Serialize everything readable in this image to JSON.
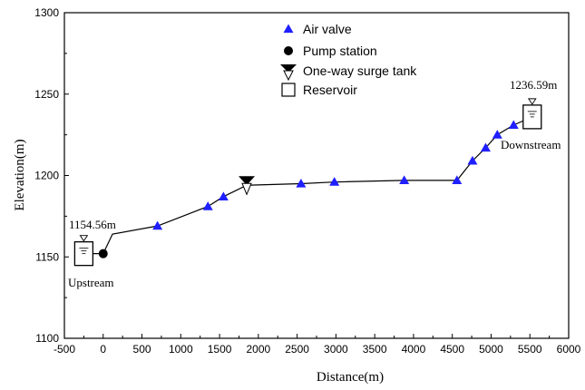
{
  "chart_data": {
    "type": "line",
    "xlabel": "Distance(m)",
    "ylabel": "Elevation(m)",
    "xlim": [
      -500,
      6000
    ],
    "ylim": [
      1100,
      1300
    ],
    "xticks": [
      -500,
      0,
      500,
      1000,
      1500,
      2000,
      2500,
      3000,
      3500,
      4000,
      4500,
      5000,
      5500,
      6000
    ],
    "yticks": [
      1100,
      1150,
      1200,
      1250,
      1300
    ],
    "grid": false,
    "legend_position": "top-center",
    "colors": {
      "line": "#000000",
      "air_valve": "#1f1fff",
      "pump": "#000000"
    },
    "series": [
      {
        "name": "Pipeline profile",
        "kind": "line",
        "x": [
          -250,
          0,
          120,
          700,
          1350,
          1550,
          1850,
          2550,
          2980,
          3880,
          4560,
          4760,
          4930,
          5080,
          5290,
          5530
        ],
        "y": [
          1152,
          1152,
          1164,
          1169,
          1181,
          1187,
          1194,
          1195,
          1196,
          1197,
          1197,
          1209,
          1217,
          1225,
          1231,
          1236
        ]
      },
      {
        "name": "Air valve",
        "kind": "triangle-up",
        "x": [
          700,
          1350,
          1550,
          2550,
          2980,
          3880,
          4560,
          4760,
          4930,
          5080,
          5290
        ],
        "y": [
          1169,
          1181,
          1187,
          1195,
          1196,
          1197,
          1197,
          1209,
          1217,
          1225,
          1231
        ]
      },
      {
        "name": "Pump station",
        "kind": "circle",
        "x": [
          0
        ],
        "y": [
          1152
        ]
      },
      {
        "name": "One-way surge tank",
        "kind": "triangle-down",
        "x": [
          1850
        ],
        "y": [
          1194
        ]
      },
      {
        "name": "Reservoir",
        "kind": "square",
        "x": [
          -250,
          5530
        ],
        "y": [
          1152,
          1236
        ]
      }
    ],
    "annotations": [
      {
        "text": "1154.56m",
        "x": -250,
        "y": 1154.56,
        "role": "upstream-level"
      },
      {
        "text": "Upstream",
        "x": -250,
        "y": 1152,
        "role": "upstream-label"
      },
      {
        "text": "1236.59m",
        "x": 5530,
        "y": 1236.59,
        "role": "downstream-level"
      },
      {
        "text": "Downstream",
        "x": 5530,
        "y": 1236,
        "role": "downstream-label"
      }
    ]
  }
}
